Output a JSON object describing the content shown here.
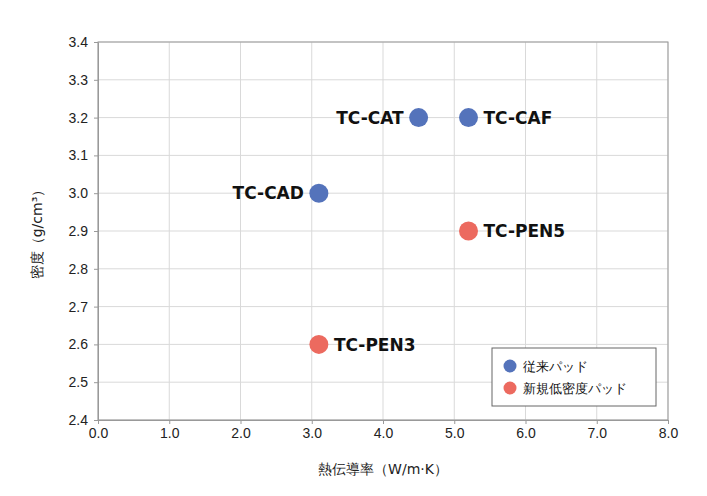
{
  "chart_data": {
    "type": "scatter",
    "x_label": "熱伝導率（W/m·K）",
    "y_label": "密度（g/cm³）",
    "xlim": [
      0,
      8
    ],
    "ylim": [
      2.4,
      3.4
    ],
    "xticks": [
      {
        "value": 0,
        "label": "0.0"
      },
      {
        "value": 1,
        "label": "1.0"
      },
      {
        "value": 2,
        "label": "2.0"
      },
      {
        "value": 3,
        "label": "3.0"
      },
      {
        "value": 4,
        "label": "4.0"
      },
      {
        "value": 5,
        "label": "5.0"
      },
      {
        "value": 6,
        "label": "6.0"
      },
      {
        "value": 7,
        "label": "7.0"
      },
      {
        "value": 8,
        "label": "8.0"
      }
    ],
    "yticks": [
      2.4,
      2.5,
      2.6,
      2.7,
      2.8,
      2.9,
      {
        "value": 3,
        "label": "3.0"
      },
      3.1,
      3.2,
      3.3,
      3.4
    ],
    "grid": true,
    "legend": "lower right",
    "series": [
      {
        "name": "従来パッド",
        "color": "#5473bb",
        "marker": "circle",
        "x": [
          4.5,
          5.2,
          3.1
        ],
        "values": [
          3.2,
          3.2,
          3.0
        ],
        "labels": [
          "TC-CAT",
          "TC-CAF",
          "TC-CAD"
        ]
      },
      {
        "name": "新規低密度パッド",
        "color": "#ec6a5f",
        "marker": "circle",
        "x": [
          5.2,
          3.1
        ],
        "values": [
          2.9,
          2.6
        ],
        "labels": [
          "TC-PEN5",
          "TC-PEN3"
        ]
      }
    ]
  }
}
